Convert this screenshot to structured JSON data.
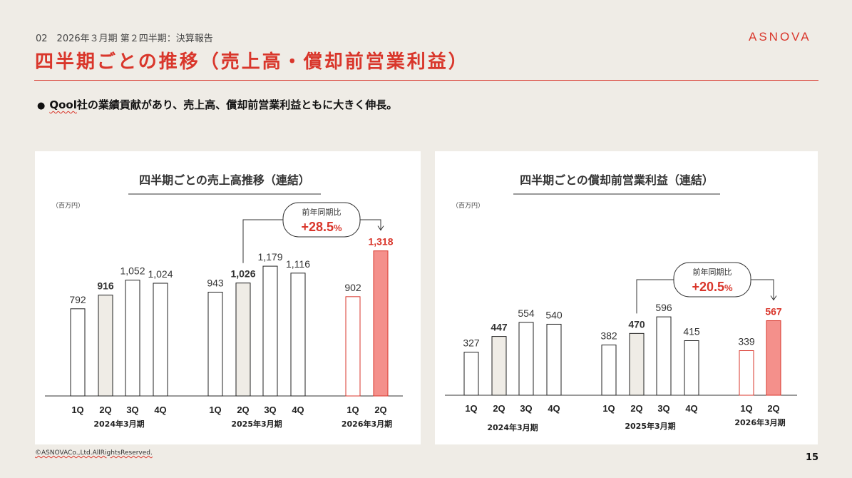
{
  "header": {
    "section": "02　2026年３月期 第２四半期：決算報告",
    "brand": "ASNOVA",
    "title": "四半期ごとの推移（売上高・償却前営業利益）"
  },
  "bullet": {
    "marker": "●",
    "lead": "Qool",
    "rest": "社の業績貢献があり、売上高、償却前営業利益ともに大きく伸長。"
  },
  "colors": {
    "accent": "#d9362b",
    "bar_highlight_fill": "#f4908b",
    "bar_q2_fill": "#efece6",
    "bar_default_fill": "#ffffff",
    "bar_stroke": "#222222"
  },
  "chart_data": [
    {
      "type": "bar",
      "title": "四半期ごとの売上高推移（連結）",
      "unit": "（百万円）",
      "groups": [
        "2024年3月期",
        "2025年3月期",
        "2026年3月期"
      ],
      "categories": [
        "1Q",
        "2Q",
        "3Q",
        "4Q",
        "1Q",
        "2Q",
        "3Q",
        "4Q",
        "1Q",
        "2Q"
      ],
      "group_of": [
        0,
        0,
        0,
        0,
        1,
        1,
        1,
        1,
        2,
        2
      ],
      "values": [
        792,
        916,
        1052,
        1024,
        943,
        1026,
        1179,
        1116,
        902,
        1318
      ],
      "labels": [
        "792",
        "916",
        "1,052",
        "1,024",
        "943",
        "1,026",
        "1,179",
        "1,116",
        "902",
        "1,318"
      ],
      "bold": [
        false,
        true,
        false,
        false,
        false,
        true,
        false,
        false,
        false,
        true
      ],
      "style": [
        "plain",
        "shaded",
        "plain",
        "plain",
        "plain",
        "shaded",
        "plain",
        "plain",
        "red-outline",
        "red-fill"
      ],
      "callout": {
        "label": "前年同期比",
        "value": "+28.5",
        "unit": "%",
        "from_index": 5,
        "to_index": 9
      },
      "ylim": [
        0,
        1400
      ]
    },
    {
      "type": "bar",
      "title": "四半期ごとの償却前営業利益（連結）",
      "unit": "（百万円）",
      "groups": [
        "2024年3月期",
        "2025年3月期",
        "2026年3月期"
      ],
      "categories": [
        "1Q",
        "2Q",
        "3Q",
        "4Q",
        "1Q",
        "2Q",
        "3Q",
        "4Q",
        "1Q",
        "2Q"
      ],
      "group_of": [
        0,
        0,
        0,
        0,
        1,
        1,
        1,
        1,
        2,
        2
      ],
      "values": [
        327,
        447,
        554,
        540,
        382,
        470,
        596,
        415,
        339,
        567
      ],
      "labels": [
        "327",
        "447",
        "554",
        "540",
        "382",
        "470",
        "596",
        "415",
        "339",
        "567"
      ],
      "bold": [
        false,
        true,
        false,
        false,
        false,
        true,
        false,
        false,
        false,
        true
      ],
      "style": [
        "plain",
        "shaded",
        "plain",
        "plain",
        "plain",
        "shaded",
        "plain",
        "plain",
        "red-outline",
        "red-fill"
      ],
      "callout": {
        "label": "前年同期比",
        "value": "+20.5",
        "unit": "%",
        "from_index": 5,
        "to_index": 9
      },
      "ylim": [
        0,
        1150
      ]
    }
  ],
  "footer": {
    "copyright": "©ASNOVACo.,Ltd.AllRightsReserved.",
    "page": "15"
  }
}
